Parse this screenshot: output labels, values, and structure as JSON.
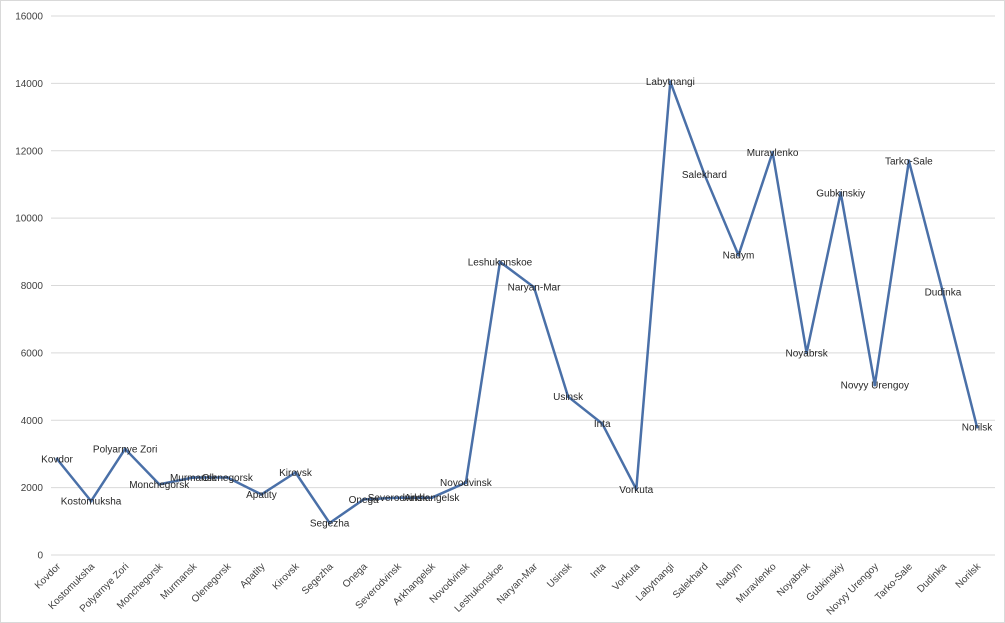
{
  "chart_data": {
    "type": "line",
    "title": "",
    "xlabel": "",
    "ylabel": "",
    "ylim": [
      0,
      16000
    ],
    "yticks": [
      0,
      2000,
      4000,
      6000,
      8000,
      10000,
      12000,
      14000,
      16000
    ],
    "grid": true,
    "legend": "none",
    "categories": [
      "Kovdor",
      "Kostomuksha",
      "Polyarnye Zori",
      "Monchegorsk",
      "Murmansk",
      "Olenegorsk",
      "Apatity",
      "Kirovsk",
      "Segezha",
      "Onega",
      "Severodvinsk",
      "Arkhangelsk",
      "Novodvinsk",
      "Leshukonskoe",
      "Naryan-Mar",
      "Usinsk",
      "Inta",
      "Vorkuta",
      "Labytnangi",
      "Salekhard",
      "Nadym",
      "Muravlenko",
      "Noyabrsk",
      "Gubkinskiy",
      "Novyy Urengoy",
      "Tarko-Sale",
      "Dudinka",
      "Norilsk"
    ],
    "series": [
      {
        "color": "#4a70a8",
        "values": [
          2850,
          1600,
          3150,
          2100,
          2300,
          2300,
          1800,
          2450,
          950,
          1650,
          1700,
          1700,
          2150,
          8700,
          7950,
          4700,
          3900,
          1950,
          14050,
          11300,
          8900,
          11950,
          6000,
          10750,
          5050,
          11700,
          7800,
          3800
        ],
        "labels": [
          "Kovdor",
          "Kostomuksha",
          "Polyarnye Zori",
          "Monchegorsk",
          "Murmansk",
          "Olenegorsk",
          "Apatity",
          "Kirovsk",
          "Segezha",
          "Onega",
          "Severodvinsk",
          "Arkhangelsk",
          "Novodvinsk",
          "Leshukonskoe",
          "Naryan-Mar",
          "Usinsk",
          "Inta",
          "Vorkuta",
          "Labytnangi",
          "Salekhard",
          "Nadym",
          "Muravlenko",
          "Noyabrsk",
          "Gubkinskiy",
          "Novyy Urengoy",
          "Tarko-Sale",
          "Dudinka",
          "Norilsk"
        ]
      }
    ]
  }
}
